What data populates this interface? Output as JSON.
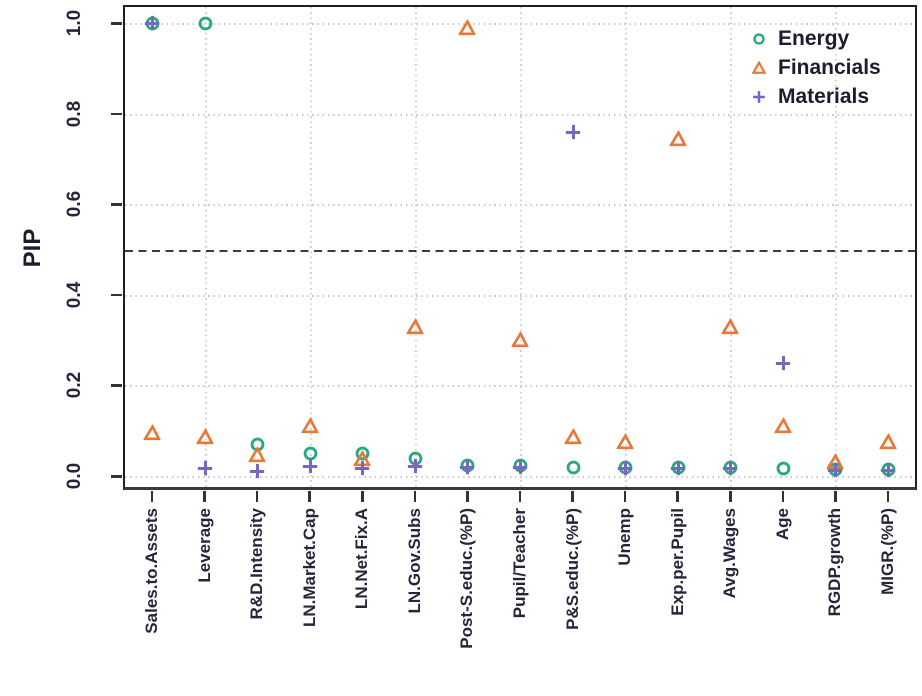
{
  "figure": {
    "ylabel": "PIP",
    "background_color": "#ffffff",
    "axis_color": "#1f1f1f",
    "grid_color": "#cdcdcd",
    "text_color": "#26263a",
    "threshold_line_style": "dashed"
  },
  "chart_data": {
    "type": "scatter",
    "title": "",
    "xlabel": "",
    "ylabel": "PIP",
    "ylim": [
      0.0,
      1.0
    ],
    "y_ticks": [
      0.0,
      0.2,
      0.4,
      0.6,
      0.8,
      1.0
    ],
    "threshold_line_y": 0.5,
    "grid": "dotted horizontal gridlines at each y tick; dotted vertical gridlines at every second category",
    "legend_position": "top-right",
    "categories": [
      "Sales.to.Assets",
      "Leverage",
      "R&D.Intensity",
      "LN.Market.Cap",
      "LN.Net.Fix.A",
      "LN.Gov.Subs",
      "Post-S.educ.(%P)",
      "Pupil/Teacher",
      "P&S.educ.(%P)",
      "Unemp",
      "Exp.per.Pupil",
      "Avg.Wages",
      "Age",
      "RGDP.growth",
      "MIGR.(%P)"
    ],
    "series": [
      {
        "name": "Energy",
        "marker": "circle",
        "color": "#2aa87f",
        "values": [
          1.0,
          1.0,
          0.07,
          0.05,
          0.05,
          0.04,
          0.025,
          0.025,
          0.02,
          0.02,
          0.02,
          0.02,
          0.018,
          0.015,
          0.015
        ]
      },
      {
        "name": "Financials",
        "marker": "triangle",
        "color": "#e6793a",
        "values": [
          0.095,
          0.085,
          0.046,
          0.11,
          0.038,
          0.33,
          0.99,
          0.3,
          0.085,
          0.075,
          0.745,
          0.33,
          0.11,
          0.03,
          0.075
        ]
      },
      {
        "name": "Materials",
        "marker": "plus",
        "color": "#7569bf",
        "values": [
          1.0,
          0.018,
          0.012,
          0.022,
          0.018,
          0.022,
          0.02,
          0.02,
          0.76,
          0.018,
          0.018,
          0.018,
          0.25,
          0.013,
          0.013
        ]
      }
    ]
  }
}
